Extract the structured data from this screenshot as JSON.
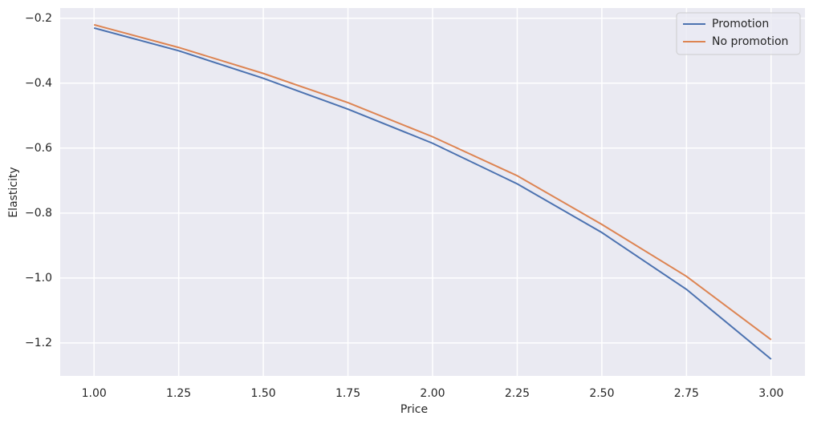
{
  "chart_data": {
    "type": "line",
    "x_label": "Price",
    "y_label": "Elasticity",
    "x": [
      1.0,
      1.25,
      1.5,
      1.75,
      2.0,
      2.25,
      2.5,
      2.75,
      3.0
    ],
    "series": [
      {
        "name": "Promotion",
        "color": "#4c72b0",
        "values": [
          -0.23,
          -0.3,
          -0.385,
          -0.48,
          -0.585,
          -0.71,
          -0.86,
          -1.035,
          -1.25
        ]
      },
      {
        "name": "No promotion",
        "color": "#dd8452",
        "values": [
          -0.22,
          -0.29,
          -0.37,
          -0.46,
          -0.565,
          -0.685,
          -0.835,
          -0.995,
          -1.19
        ]
      }
    ],
    "xlim": [
      0.9,
      3.1
    ],
    "ylim": [
      -1.3015,
      -0.1685
    ],
    "xticks": [
      {
        "value": 1.0,
        "label": "1.00"
      },
      {
        "value": 1.25,
        "label": "1.25"
      },
      {
        "value": 1.5,
        "label": "1.50"
      },
      {
        "value": 1.75,
        "label": "1.75"
      },
      {
        "value": 2.0,
        "label": "2.00"
      },
      {
        "value": 2.25,
        "label": "2.25"
      },
      {
        "value": 2.5,
        "label": "2.50"
      },
      {
        "value": 2.75,
        "label": "2.75"
      },
      {
        "value": 3.0,
        "label": "3.00"
      }
    ],
    "yticks": [
      {
        "value": -1.2,
        "label": "−1.2"
      },
      {
        "value": -1.0,
        "label": "−1.0"
      },
      {
        "value": -0.8,
        "label": "−0.8"
      },
      {
        "value": -0.6,
        "label": "−0.6"
      },
      {
        "value": -0.4,
        "label": "−0.4"
      },
      {
        "value": -0.2,
        "label": "−0.2"
      }
    ],
    "grid": true,
    "legend": "upper right"
  }
}
